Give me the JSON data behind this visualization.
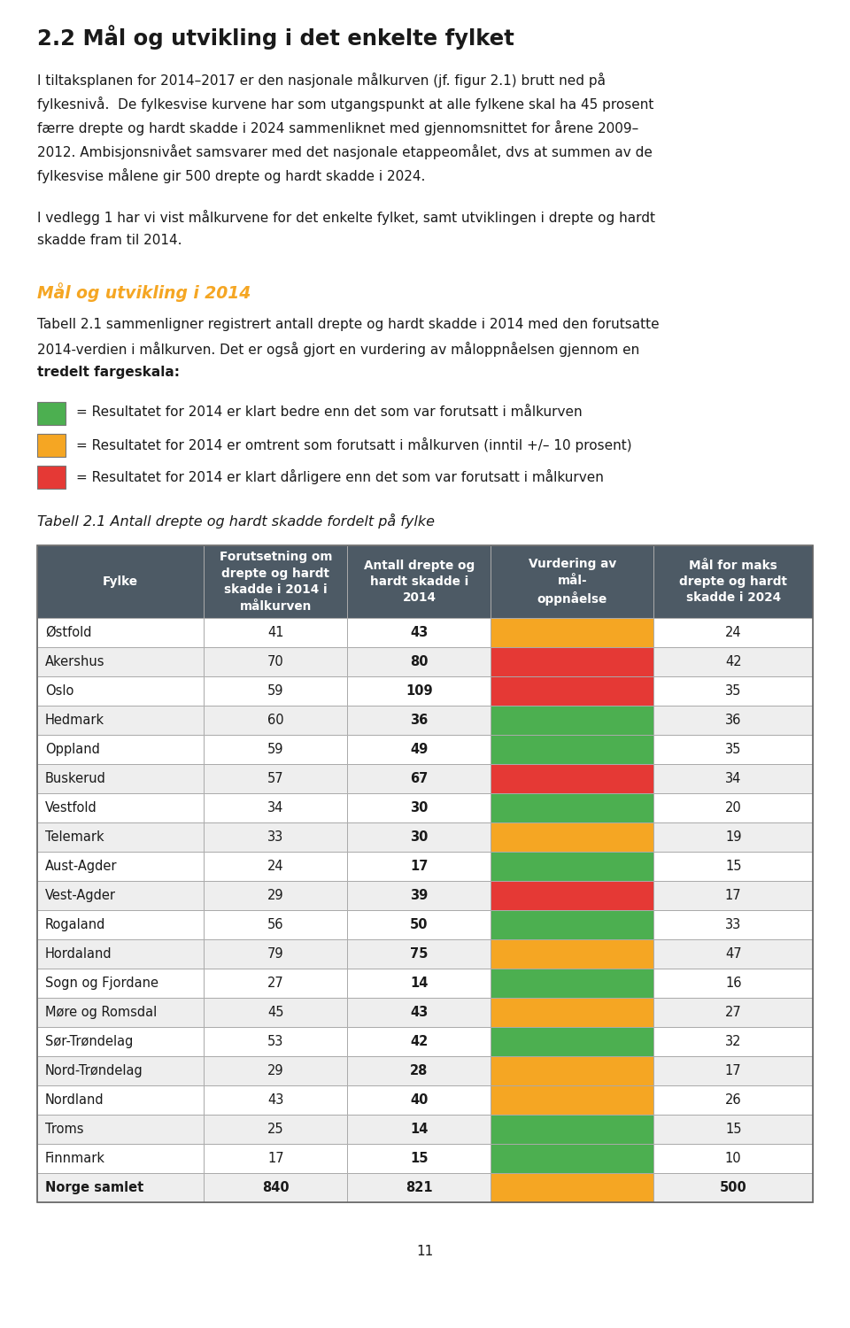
{
  "title": "2.2 Mål og utvikling i det enkelte fylket",
  "subtitle_color": "#f5a623",
  "subtitle": "Mål og utvikling i 2014",
  "body_text_1a": "I tiltaksplanen for 2014–2017 er den nasjonale målkurven (jf. figur 2.1) brutt ned på",
  "body_text_1b": "fylkesnivå.  De fylkesvise kurvene har som utgangspunkt at alle fylkene skal ha 45 prosent",
  "body_text_1c": "færre drepte og hardt skadde i 2024 sammenliknet med gjennomsnittet for årene 2009–",
  "body_text_1d": "2012. Ambisjonsnivået samsvarer med det nasjonale etappeomålet, dvs at summen av de",
  "body_text_1e": "fylkesvise målene gir 500 drepte og hardt skadde i 2024.",
  "body_text_2a": "I vedlegg 1 har vi vist målkurvene for det enkelte fylket, samt utviklingen i drepte og hardt",
  "body_text_2b": "skadde fram til 2014.",
  "body_text_3a": "Tabell 2.1 sammenligner registrert antall drepte og hardt skadde i 2014 med den forutsatte",
  "body_text_3b": "2014-verdien i målkurven. Det er også gjort en vurdering av måloppnåelsen gjennom en",
  "body_text_3c_normal": "tredelt fargeskala:",
  "legend_items": [
    {
      "color": "#4caf50",
      "text": "= Resultatet for 2014 er klart bedre enn det som var forutsatt i målkurven"
    },
    {
      "color": "#f5a623",
      "text": "= Resultatet for 2014 er omtrent som forutsatt i målkurven (inntil +/– 10 prosent)"
    },
    {
      "color": "#e53935",
      "text": "= Resultatet for 2014 er klart dårligere enn det som var forutsatt i målkurven"
    }
  ],
  "table_title": "Tabell 2.1 Antall drepte og hardt skadde fordelt på fylke",
  "header_bg": "#4d5a65",
  "header_fg": "#ffffff",
  "row_bg_alt": "#eeeeee",
  "row_bg": "#ffffff",
  "col_headers": [
    "Fylke",
    "Forutsetning om\ndrepte og hardt\nskadde i 2014 i\nmålkurven",
    "Antall drepte og\nhardt skadde i\n2014",
    "Vurdering av\nmål-\noppnåelse",
    "Mål for maks\ndrepte og hardt\nskadde i 2024"
  ],
  "rows": [
    {
      "fylke": "Østfold",
      "forutsetning": 41,
      "antall": 43,
      "color": "#f5a623",
      "maal": 24
    },
    {
      "fylke": "Akershus",
      "forutsetning": 70,
      "antall": 80,
      "color": "#e53935",
      "maal": 42
    },
    {
      "fylke": "Oslo",
      "forutsetning": 59,
      "antall": 109,
      "color": "#e53935",
      "maal": 35
    },
    {
      "fylke": "Hedmark",
      "forutsetning": 60,
      "antall": 36,
      "color": "#4caf50",
      "maal": 36
    },
    {
      "fylke": "Oppland",
      "forutsetning": 59,
      "antall": 49,
      "color": "#4caf50",
      "maal": 35
    },
    {
      "fylke": "Buskerud",
      "forutsetning": 57,
      "antall": 67,
      "color": "#e53935",
      "maal": 34
    },
    {
      "fylke": "Vestfold",
      "forutsetning": 34,
      "antall": 30,
      "color": "#4caf50",
      "maal": 20
    },
    {
      "fylke": "Telemark",
      "forutsetning": 33,
      "antall": 30,
      "color": "#f5a623",
      "maal": 19
    },
    {
      "fylke": "Aust-Agder",
      "forutsetning": 24,
      "antall": 17,
      "color": "#4caf50",
      "maal": 15
    },
    {
      "fylke": "Vest-Agder",
      "forutsetning": 29,
      "antall": 39,
      "color": "#e53935",
      "maal": 17
    },
    {
      "fylke": "Rogaland",
      "forutsetning": 56,
      "antall": 50,
      "color": "#4caf50",
      "maal": 33
    },
    {
      "fylke": "Hordaland",
      "forutsetning": 79,
      "antall": 75,
      "color": "#f5a623",
      "maal": 47
    },
    {
      "fylke": "Sogn og Fjordane",
      "forutsetning": 27,
      "antall": 14,
      "color": "#4caf50",
      "maal": 16
    },
    {
      "fylke": "Møre og Romsdal",
      "forutsetning": 45,
      "antall": 43,
      "color": "#f5a623",
      "maal": 27
    },
    {
      "fylke": "Sør-Trøndelag",
      "forutsetning": 53,
      "antall": 42,
      "color": "#4caf50",
      "maal": 32
    },
    {
      "fylke": "Nord-Trøndelag",
      "forutsetning": 29,
      "antall": 28,
      "color": "#f5a623",
      "maal": 17
    },
    {
      "fylke": "Nordland",
      "forutsetning": 43,
      "antall": 40,
      "color": "#f5a623",
      "maal": 26
    },
    {
      "fylke": "Troms",
      "forutsetning": 25,
      "antall": 14,
      "color": "#4caf50",
      "maal": 15
    },
    {
      "fylke": "Finnmark",
      "forutsetning": 17,
      "antall": 15,
      "color": "#4caf50",
      "maal": 10
    },
    {
      "fylke": "Norge samlet",
      "forutsetning": 840,
      "antall": 821,
      "color": "#f5a623",
      "maal": 500
    }
  ],
  "page_number": "11",
  "background_color": "#ffffff",
  "text_color": "#2c2c2c",
  "border_color": "#aaaaaa"
}
